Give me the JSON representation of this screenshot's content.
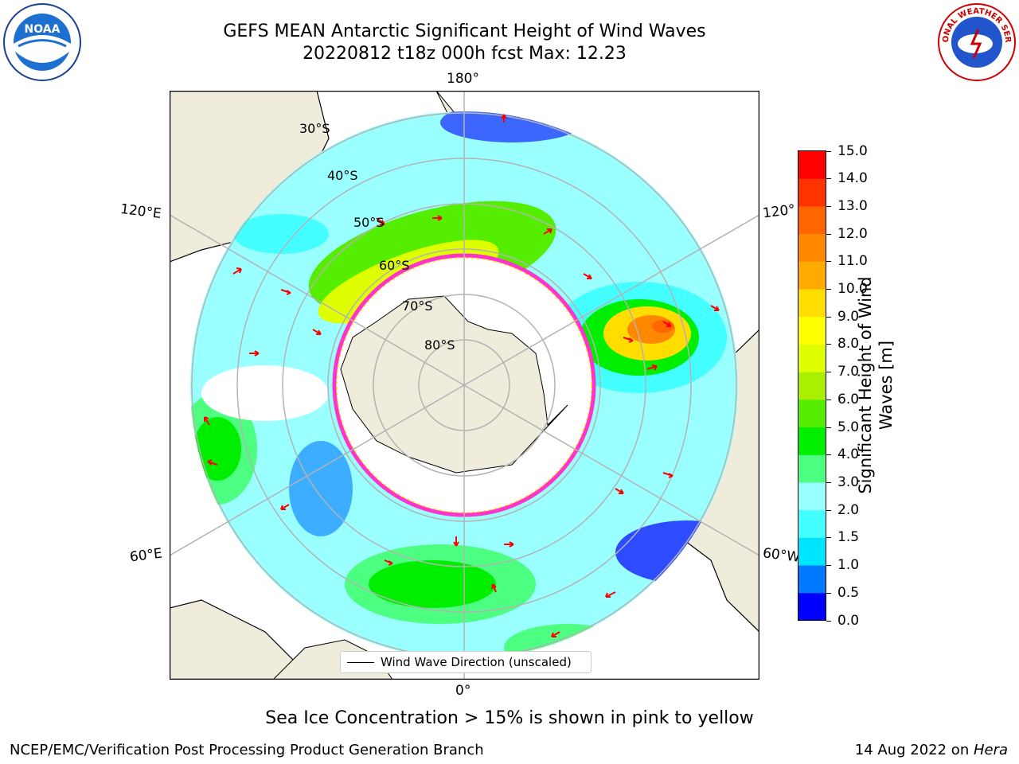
{
  "title": {
    "line1": "GEFS MEAN Antarctic Significant Height of Wind Waves",
    "line2": "20220812 t18z 000h fcst   Max: 12.23"
  },
  "map": {
    "lon_labels": {
      "top": "180°",
      "bottom": "0°",
      "upper_left": "120°E",
      "upper_right": "120°",
      "lower_left": "60°E",
      "lower_right": "60°W"
    },
    "lat_labels": [
      "30°S",
      "40°S",
      "50°S",
      "60°S",
      "70°S",
      "80°S"
    ],
    "legend_label": "Wind Wave Direction (unscaled)",
    "colors": {
      "land": "#efecdc",
      "ice_edge": "#ff33cc",
      "arrow": "#ff0000",
      "grid": "#b3b3b3"
    }
  },
  "colorbar": {
    "label": "Significant Height of Wind Waves [m]",
    "ticks": [
      "0.0",
      "0.5",
      "1.0",
      "1.5",
      "2.0",
      "3.0",
      "4.0",
      "5.0",
      "6.0",
      "7.0",
      "8.0",
      "9.0",
      "10.0",
      "11.0",
      "12.0",
      "13.0",
      "14.0",
      "15.0"
    ],
    "colors": [
      "#0000ff",
      "#0078ff",
      "#00e5ff",
      "#44ffff",
      "#99ffff",
      "#4dff80",
      "#00ee00",
      "#55ee00",
      "#aaee00",
      "#ddff00",
      "#ffff00",
      "#ffdd00",
      "#ffaa00",
      "#ff8800",
      "#ff6600",
      "#ff3300",
      "#ff0000"
    ]
  },
  "caption": "Sea Ice Concentration > 15% is shown in pink to yellow",
  "footer": {
    "left": "NCEP/EMC/Verification Post Processing Product Generation Branch",
    "right_prefix": "14 Aug 2022 on ",
    "right_italic": "Hera"
  },
  "logos": {
    "left": "NOAA",
    "right": "NATIONAL WEATHER SERVICE"
  }
}
